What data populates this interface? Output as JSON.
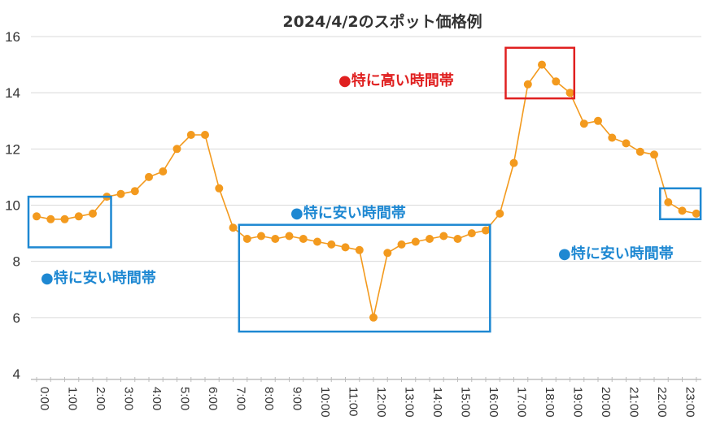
{
  "chart_data": {
    "type": "line",
    "title": "2024/4/2のスポット価格例",
    "xlabel": "",
    "ylabel": "",
    "ylim": [
      4,
      16
    ],
    "yticks": [
      4,
      6,
      8,
      10,
      12,
      14,
      16
    ],
    "grid": true,
    "x_tick_labels": [
      "0:00",
      "1:00",
      "2:00",
      "3:00",
      "4:00",
      "5:00",
      "6:00",
      "7:00",
      "8:00",
      "9:00",
      "10:00",
      "11:00",
      "12:00",
      "13:00",
      "14:00",
      "15:00",
      "16:00",
      "17:00",
      "18:00",
      "19:00",
      "20:00",
      "21:00",
      "22:00",
      "23:00"
    ],
    "x": [
      "0:00",
      "0:30",
      "1:00",
      "1:30",
      "2:00",
      "2:30",
      "3:00",
      "3:30",
      "4:00",
      "4:30",
      "5:00",
      "5:30",
      "6:00",
      "6:30",
      "7:00",
      "7:30",
      "8:00",
      "8:30",
      "9:00",
      "9:30",
      "10:00",
      "10:30",
      "11:00",
      "11:30",
      "12:00",
      "12:30",
      "13:00",
      "13:30",
      "14:00",
      "14:30",
      "15:00",
      "15:30",
      "16:00",
      "16:30",
      "17:00",
      "17:30",
      "18:00",
      "18:30",
      "19:00",
      "19:30",
      "20:00",
      "20:30",
      "21:00",
      "21:30",
      "22:00",
      "22:30",
      "23:00",
      "23:30"
    ],
    "series": [
      {
        "color": "#f39a1e",
        "values": [
          9.6,
          9.5,
          9.5,
          9.6,
          9.7,
          10.3,
          10.4,
          10.5,
          11.0,
          11.2,
          12.0,
          12.5,
          12.5,
          10.6,
          9.2,
          8.8,
          8.9,
          8.8,
          8.9,
          8.8,
          8.7,
          8.6,
          8.5,
          8.4,
          6.0,
          8.3,
          8.6,
          8.7,
          8.8,
          8.9,
          8.8,
          9.0,
          9.1,
          9.7,
          11.5,
          14.3,
          15.0,
          14.4,
          14.0,
          12.9,
          13.0,
          12.4,
          12.2,
          11.9,
          11.8,
          10.1,
          9.8,
          9.7
        ]
      }
    ],
    "annotations": [
      {
        "label": "●特に安い時間帯",
        "color": "#1e88d2",
        "x_range": [
          "0:00",
          "3:00"
        ],
        "y_range": [
          8.5,
          10.3
        ]
      },
      {
        "label": "●特に安い時間帯",
        "color": "#1e88d2",
        "x_range": [
          "7:30",
          "16:30"
        ],
        "y_range": [
          5.5,
          9.3
        ]
      },
      {
        "label": "●特に高い時間帯",
        "color": "#e02020",
        "x_range": [
          "17:00",
          "19:30"
        ],
        "y_range": [
          13.8,
          15.6
        ]
      },
      {
        "label": "●特に安い時間帯",
        "color": "#1e88d2",
        "x_range": [
          "22:30",
          "24:00"
        ],
        "y_range": [
          9.5,
          10.6
        ]
      }
    ]
  }
}
